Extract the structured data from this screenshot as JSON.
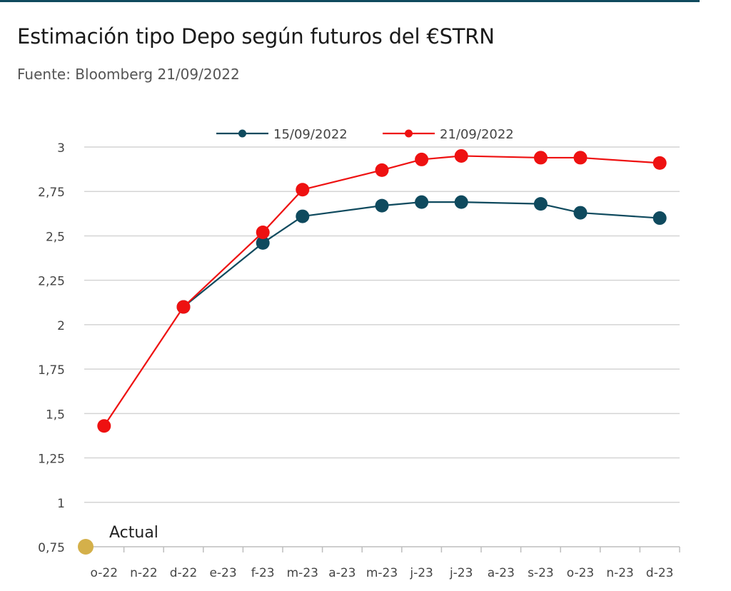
{
  "header": {
    "title": "Estimación tipo Depo según futuros del €STRN",
    "subtitle": "Fuente: Bloomberg 21/09/2022"
  },
  "chart_data": {
    "type": "line",
    "categories": [
      "o-22",
      "n-22",
      "d-22",
      "e-23",
      "f-23",
      "m-23",
      "a-23",
      "m-23",
      "j-23",
      "j-23",
      "a-23",
      "s-23",
      "o-23",
      "n-23",
      "d-23"
    ],
    "y_ticks": [
      "0,75",
      "1",
      "1,25",
      "1,5",
      "1,75",
      "2",
      "2,25",
      "2,5",
      "2,75",
      "3"
    ],
    "ylim": [
      0.75,
      3.0
    ],
    "grid": true,
    "legend_position": "top",
    "series": [
      {
        "name": "15/09/2022",
        "color": "#0f4a5e",
        "points": [
          {
            "x": 2,
            "y": 2.1
          },
          {
            "x": 4,
            "y": 2.46
          },
          {
            "x": 5,
            "y": 2.61
          },
          {
            "x": 7,
            "y": 2.67
          },
          {
            "x": 8,
            "y": 2.69
          },
          {
            "x": 9,
            "y": 2.69
          },
          {
            "x": 11,
            "y": 2.68
          },
          {
            "x": 12,
            "y": 2.63
          },
          {
            "x": 14,
            "y": 2.6
          }
        ]
      },
      {
        "name": "21/09/2022",
        "color": "#ee1111",
        "points": [
          {
            "x": 0,
            "y": 1.43
          },
          {
            "x": 2,
            "y": 2.1
          },
          {
            "x": 4,
            "y": 2.52
          },
          {
            "x": 5,
            "y": 2.76
          },
          {
            "x": 7,
            "y": 2.87
          },
          {
            "x": 8,
            "y": 2.93
          },
          {
            "x": 9,
            "y": 2.95
          },
          {
            "x": 11,
            "y": 2.94
          },
          {
            "x": 12,
            "y": 2.94
          },
          {
            "x": 14,
            "y": 2.91
          }
        ]
      }
    ],
    "annotation": {
      "text": "Actual",
      "value": 0.75,
      "color": "#d4b04a"
    }
  }
}
